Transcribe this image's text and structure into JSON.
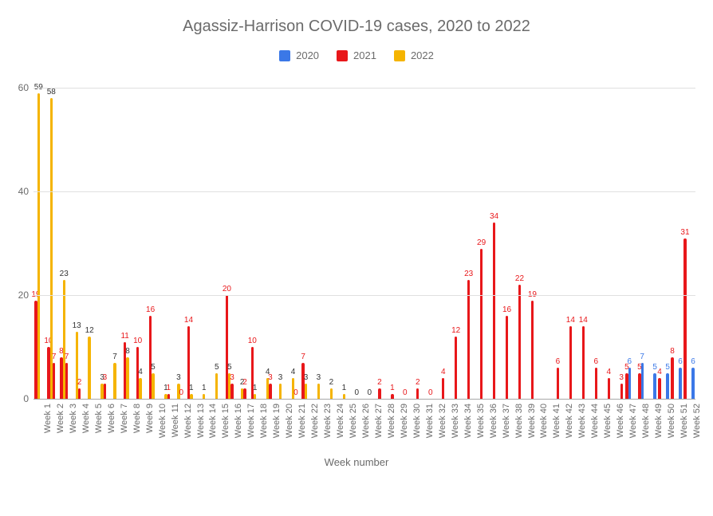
{
  "chart": {
    "type": "bar",
    "title": "Agassiz-Harrison COVID-19 cases, 2020 to 2022",
    "title_fontsize": 20,
    "title_color": "#6b6b6b",
    "background_color": "#ffffff",
    "grid_color": "#e0e0e0",
    "axis_color": "#a8a8a8",
    "tick_label_color": "#6b6b6b",
    "tick_fontsize": 12,
    "data_label_fontsize": 10,
    "xaxis_label": "Week number",
    "xaxis_label_fontsize": 13,
    "xtick_rotation_deg": -90,
    "x_label_prefix": "Week ",
    "weeks": 52,
    "ylim": [
      0,
      60
    ],
    "ytick_step": 20,
    "legend": {
      "position": "top-center",
      "items": [
        {
          "label": "2020",
          "color": "#3b78e7"
        },
        {
          "label": "2021",
          "color": "#e8171a"
        },
        {
          "label": "2022",
          "color": "#f5b400"
        }
      ]
    },
    "series": [
      {
        "name": "2021",
        "color": "#e8171a",
        "label_color": "#e8171a",
        "values": [
          19,
          10,
          8,
          null,
          null,
          null,
          null,
          11,
          10,
          16,
          null,
          null,
          14,
          null,
          null,
          20,
          null,
          10,
          null,
          null,
          null,
          7,
          null,
          null,
          null,
          null,
          null,
          2,
          1,
          0,
          2,
          0,
          4,
          12,
          23,
          29,
          34,
          16,
          22,
          19,
          null,
          6,
          14,
          14,
          6,
          4,
          3,
          null,
          null,
          4,
          8,
          31
        ]
      },
      {
        "name": "2022",
        "color": "#f5b400",
        "label_color": "#333333",
        "values": [
          59,
          58,
          23,
          13,
          12,
          3,
          7,
          8,
          4,
          5,
          1,
          3,
          1,
          1,
          5,
          5,
          2,
          1,
          4,
          3,
          4,
          3,
          3,
          2,
          1,
          0,
          0,
          null,
          null,
          null,
          null,
          null,
          null,
          null,
          null,
          null,
          null,
          null,
          null,
          null,
          null,
          null,
          null,
          null,
          null,
          null,
          null,
          null,
          null,
          null,
          null,
          null
        ]
      },
      {
        "name": "2021b",
        "color": "#e8171a",
        "label_color": "#e8171a",
        "values": [
          null,
          7,
          7,
          2,
          null,
          3,
          null,
          null,
          null,
          null,
          1,
          0,
          null,
          null,
          null,
          3,
          2,
          null,
          3,
          null,
          0,
          null,
          null,
          null,
          null,
          null,
          null,
          null,
          null,
          null,
          null,
          null,
          null,
          null,
          null,
          null,
          null,
          null,
          null,
          null,
          null,
          null,
          null,
          null,
          null,
          null,
          5,
          5,
          null,
          null,
          null,
          null
        ]
      },
      {
        "name": "2020",
        "color": "#3b78e7",
        "label_color": "#3b78e7",
        "values": [
          null,
          null,
          null,
          null,
          null,
          null,
          null,
          null,
          null,
          null,
          null,
          null,
          null,
          null,
          null,
          null,
          null,
          null,
          null,
          null,
          null,
          null,
          null,
          null,
          null,
          null,
          null,
          null,
          null,
          null,
          null,
          null,
          null,
          null,
          null,
          null,
          null,
          null,
          null,
          null,
          null,
          null,
          null,
          null,
          null,
          null,
          6,
          7,
          5,
          5,
          6,
          6
        ]
      }
    ]
  }
}
